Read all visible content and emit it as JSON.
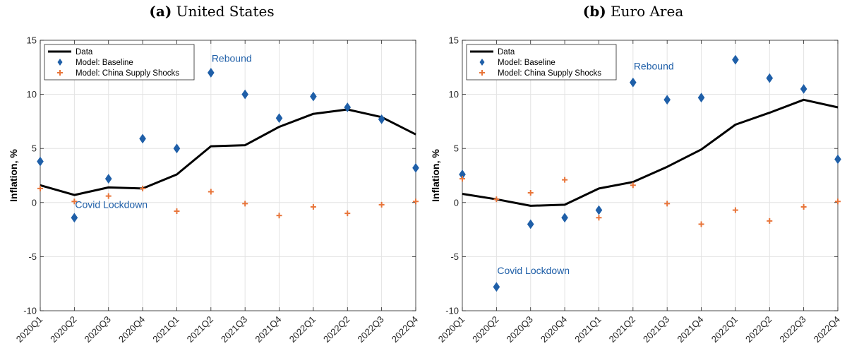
{
  "chart_data": [
    {
      "type": "line",
      "panel_label": "(a)",
      "title": "United States",
      "xlabel": "",
      "ylabel": "Inflation, %",
      "ylim": [
        -10,
        15
      ],
      "yticks": [
        -10,
        -5,
        0,
        5,
        10,
        15
      ],
      "grid": true,
      "legend_position": "top-left",
      "categories": [
        "2020Q1",
        "2020Q2",
        "2020Q3",
        "2020Q4",
        "2021Q1",
        "2021Q2",
        "2021Q3",
        "2021Q4",
        "2022Q1",
        "2022Q2",
        "2022Q3",
        "2022Q4"
      ],
      "series": [
        {
          "name": "Data",
          "style": "line",
          "color": "#000000",
          "values": [
            1.6,
            0.7,
            1.4,
            1.3,
            2.6,
            5.2,
            5.3,
            7.0,
            8.2,
            8.6,
            7.9,
            6.3
          ]
        },
        {
          "name": "Model: Baseline",
          "style": "diamond",
          "color": "#1f5fa8",
          "values": [
            3.8,
            -1.4,
            2.2,
            5.9,
            5.0,
            12.0,
            10.0,
            7.8,
            9.8,
            8.8,
            7.7,
            3.2
          ]
        },
        {
          "name": "Model: China Supply Shocks",
          "style": "plus",
          "color": "#e8753a",
          "values": [
            1.3,
            0.1,
            0.6,
            1.3,
            -0.8,
            1.0,
            -0.1,
            -1.2,
            -0.4,
            -1.0,
            -0.2,
            0.1
          ]
        }
      ],
      "annotations": [
        {
          "text": "Rebound",
          "x": "2021Q2",
          "y": 13.0
        },
        {
          "text": "Covid Lockdown",
          "x": "2020Q2",
          "y": -0.5
        }
      ]
    },
    {
      "type": "line",
      "panel_label": "(b)",
      "title": "Euro Area",
      "xlabel": "",
      "ylabel": "Inflation, %",
      "ylim": [
        -10,
        15
      ],
      "yticks": [
        -10,
        -5,
        0,
        5,
        10,
        15
      ],
      "grid": true,
      "legend_position": "top-left",
      "categories": [
        "2020Q1",
        "2020Q2",
        "2020Q3",
        "2020Q4",
        "2021Q1",
        "2021Q2",
        "2021Q3",
        "2021Q4",
        "2022Q1",
        "2022Q2",
        "2022Q3",
        "2022Q4"
      ],
      "series": [
        {
          "name": "Data",
          "style": "line",
          "color": "#000000",
          "values": [
            0.8,
            0.3,
            -0.3,
            -0.2,
            1.3,
            1.9,
            3.3,
            4.9,
            7.2,
            8.3,
            9.5,
            8.8
          ]
        },
        {
          "name": "Model: Baseline",
          "style": "diamond",
          "color": "#1f5fa8",
          "values": [
            2.6,
            -7.8,
            -2.0,
            -1.4,
            -0.7,
            11.1,
            9.5,
            9.7,
            13.2,
            11.5,
            10.5,
            4.0
          ]
        },
        {
          "name": "Model: China Supply Shocks",
          "style": "plus",
          "color": "#e8753a",
          "values": [
            2.2,
            0.3,
            0.9,
            2.1,
            -1.4,
            1.6,
            -0.1,
            -2.0,
            -0.7,
            -1.7,
            -0.4,
            0.1
          ]
        }
      ],
      "annotations": [
        {
          "text": "Rebound",
          "x": "2021Q2",
          "y": 12.3
        },
        {
          "text": "Covid Lockdown",
          "x": "2020Q2",
          "y": -6.6
        }
      ]
    }
  ]
}
